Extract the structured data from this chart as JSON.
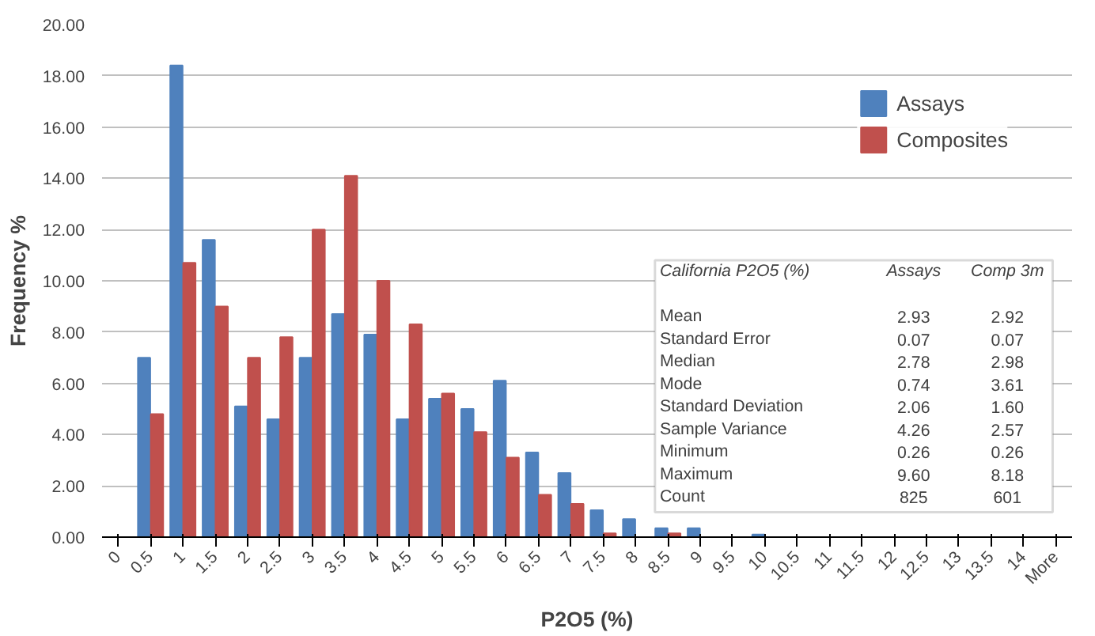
{
  "chart_data": {
    "type": "bar",
    "xlabel": "P2O5 (%)",
    "ylabel": "Frequency %",
    "categories": [
      "0",
      "0.5",
      "1",
      "1.5",
      "2",
      "2.5",
      "3",
      "3.5",
      "4",
      "4.5",
      "5",
      "5.5",
      "6",
      "6.5",
      "7",
      "7.5",
      "8",
      "8.5",
      "9",
      "9.5",
      "10",
      "10.5",
      "11",
      "11.5",
      "12",
      "12.5",
      "13",
      "13.5",
      "14",
      "More"
    ],
    "series": [
      {
        "name": "Assays",
        "color": "#4f81bd",
        "values": [
          0,
          7.0,
          18.4,
          11.6,
          5.1,
          4.6,
          7.0,
          8.7,
          7.9,
          4.6,
          5.4,
          5.0,
          6.1,
          3.3,
          2.5,
          1.05,
          0.7,
          0.35,
          0.35,
          0,
          0.1,
          0,
          0,
          0,
          0,
          0,
          0,
          0,
          0,
          0
        ]
      },
      {
        "name": "Composites",
        "color": "#c0504d",
        "values": [
          0,
          4.8,
          10.7,
          9.0,
          7.0,
          7.8,
          12.0,
          14.1,
          10.0,
          8.3,
          5.6,
          4.1,
          3.1,
          1.65,
          1.3,
          0.15,
          0,
          0.15,
          0,
          0,
          0,
          0,
          0,
          0,
          0,
          0,
          0,
          0,
          0,
          0
        ]
      }
    ],
    "ylim": [
      0,
      20
    ],
    "yticks": [
      {
        "value": 0,
        "label": "0.00"
      },
      {
        "value": 2,
        "label": "2.00"
      },
      {
        "value": 4,
        "label": "4.00"
      },
      {
        "value": 6,
        "label": "6.00"
      },
      {
        "value": 8,
        "label": "8.00"
      },
      {
        "value": 10,
        "label": "10.00"
      },
      {
        "value": 12,
        "label": "12.00"
      },
      {
        "value": 14,
        "label": "14.00"
      },
      {
        "value": 16,
        "label": "16.00"
      },
      {
        "value": 18,
        "label": "18.00"
      },
      {
        "value": 20,
        "label": "20.00"
      }
    ],
    "grid": "y",
    "legend": "top right",
    "annotations": [
      "California P2O5 (%)",
      "Assays",
      "Comp 3m",
      "Mean",
      "2.93",
      "2.92",
      "Standard Error",
      "0.07",
      "0.07",
      "Median",
      "2.78",
      "2.98",
      "Mode",
      "0.74",
      "3.61",
      "Standard Deviation",
      "2.06",
      "1.60",
      "Sample Variance",
      "4.26",
      "2.57",
      "Minimum",
      "0.26",
      "0.26",
      "Maximum",
      "9.60",
      "8.18",
      "Count",
      "825",
      "601"
    ]
  }
}
